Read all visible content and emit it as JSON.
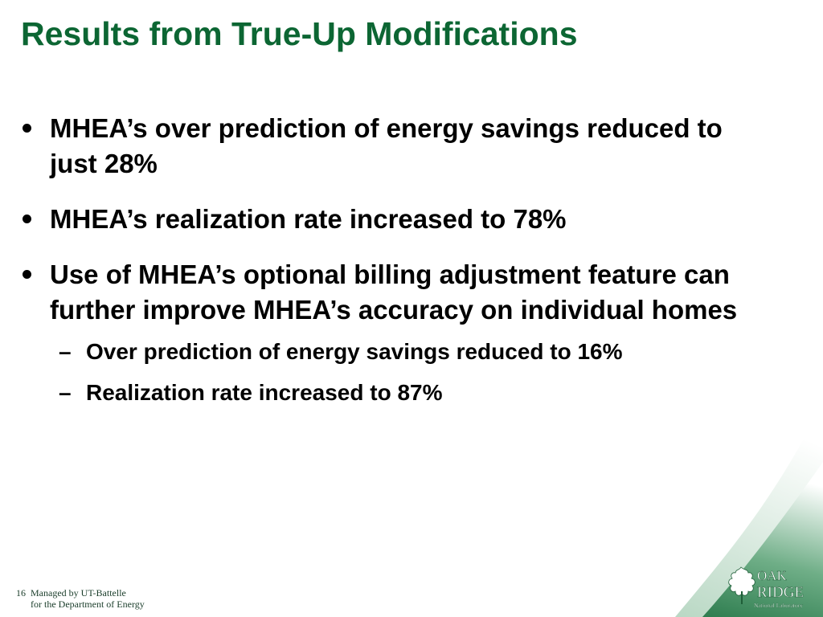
{
  "slide": {
    "title": "Results from True-Up Modifications",
    "bullets": [
      {
        "text": "MHEA’s over prediction of energy savings reduced to just 28%"
      },
      {
        "text": "MHEA’s realization rate increased to 78%"
      },
      {
        "text": "Use of MHEA’s optional billing adjustment feature can further improve MHEA’s accuracy on individual homes"
      }
    ],
    "sub_bullets": [
      {
        "dash": "–",
        "text": "Over prediction of energy savings reduced to 16%"
      },
      {
        "dash": "–",
        "text": "Realization rate increased to 87%"
      }
    ]
  },
  "footer": {
    "page_number": "16",
    "line1": "Managed by UT-Battelle",
    "line2": "for the Department of Energy"
  },
  "logo": {
    "word1": "OAK",
    "word2": "RIDGE",
    "tagline": "National Laboratory"
  },
  "colors": {
    "title_green": "#0c6633",
    "swoosh_green": "#2e8b57",
    "text": "#000000"
  }
}
